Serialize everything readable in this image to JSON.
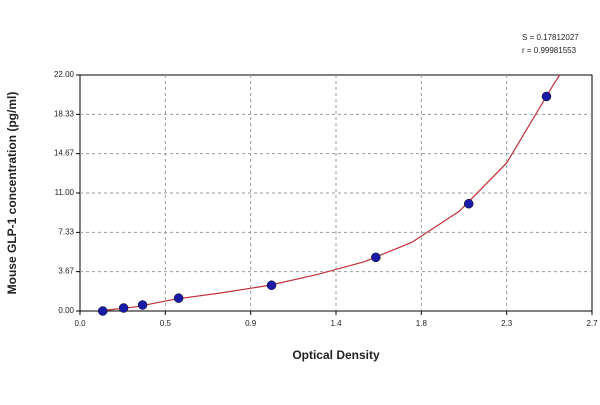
{
  "chart_data": {
    "type": "scatter",
    "x_label": "Optical Density",
    "y_label": "Mouse GLP-1 concentration (pg/ml)",
    "annotations": [
      "S = 0.17812027",
      "r = 0.99981553"
    ],
    "xlim": [
      0,
      2.7
    ],
    "ylim": [
      0,
      22
    ],
    "xticks": [
      {
        "value": 0,
        "label": "0.0"
      },
      {
        "value": 0.45,
        "label": "0.5"
      },
      0.9,
      {
        "value": 1.35,
        "label": "1.4"
      },
      1.8,
      {
        "value": 2.25,
        "label": "2.3"
      },
      2.7
    ],
    "yticks": [
      {
        "value": 0,
        "label": "0.00"
      },
      3.67,
      7.33,
      {
        "value": 11,
        "label": "11.00"
      },
      14.67,
      18.33,
      {
        "value": 22,
        "label": "22.00"
      }
    ],
    "grid": true,
    "points": {
      "color": "#1a1aa8",
      "x": [
        0.12,
        0.23,
        0.33,
        0.52,
        1.01,
        1.56,
        2.05,
        2.46
      ],
      "y": [
        0,
        0.28,
        0.56,
        1.2,
        2.4,
        5.0,
        10.0,
        20.0
      ]
    },
    "curve": {
      "color": "#c0303a",
      "x": [
        0.1,
        0.3,
        0.5,
        0.75,
        1.0,
        1.25,
        1.5,
        1.75,
        2.0,
        2.25,
        2.5,
        2.53
      ],
      "y": [
        0,
        0.4,
        1.1,
        1.7,
        2.4,
        3.4,
        4.6,
        6.4,
        9.3,
        13.8,
        21.2,
        22
      ]
    }
  }
}
